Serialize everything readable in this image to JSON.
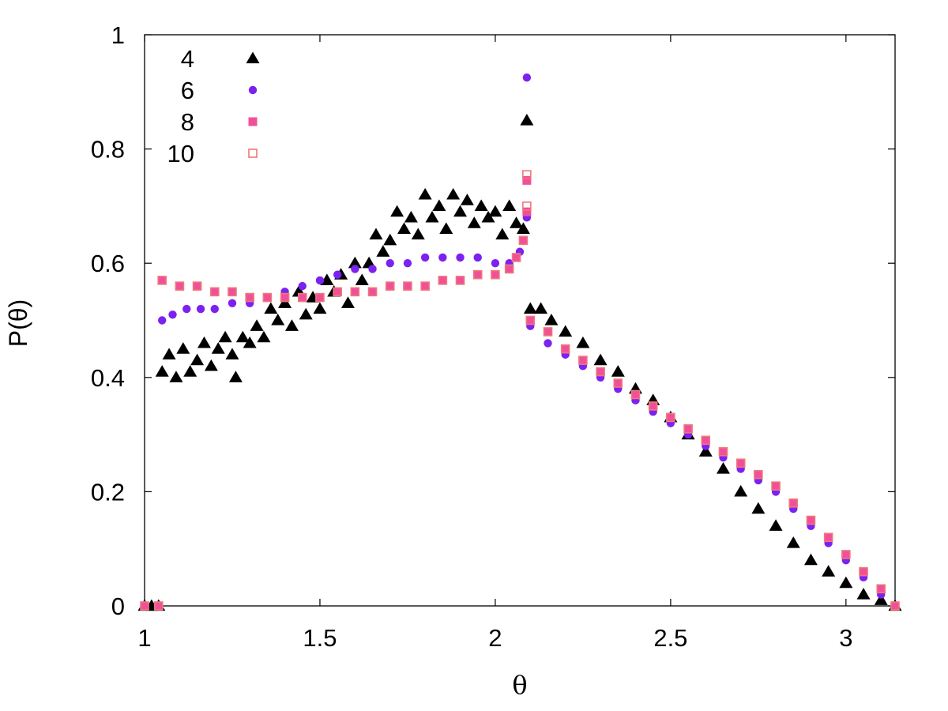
{
  "chart_data": {
    "type": "scatter",
    "title": "",
    "xlabel": "θ",
    "ylabel": "P(θ)",
    "xlim": [
      1,
      3.14
    ],
    "ylim": [
      0,
      1
    ],
    "x_ticks": [
      "1",
      "1.5",
      "2",
      "2.5",
      "3"
    ],
    "y_ticks": [
      "0",
      "0.2",
      "0.4",
      "0.6",
      "0.8",
      "1"
    ],
    "grid": false,
    "legend_position": "top-left",
    "series": [
      {
        "name": "4",
        "marker": "filled-triangle",
        "color": "#000000",
        "points": [
          [
            1.0,
            0.0
          ],
          [
            1.02,
            0.0
          ],
          [
            1.04,
            0.0
          ],
          [
            1.05,
            0.41
          ],
          [
            1.07,
            0.44
          ],
          [
            1.09,
            0.4
          ],
          [
            1.11,
            0.45
          ],
          [
            1.13,
            0.41
          ],
          [
            1.15,
            0.43
          ],
          [
            1.17,
            0.46
          ],
          [
            1.19,
            0.42
          ],
          [
            1.21,
            0.45
          ],
          [
            1.23,
            0.47
          ],
          [
            1.25,
            0.44
          ],
          [
            1.26,
            0.4
          ],
          [
            1.28,
            0.47
          ],
          [
            1.3,
            0.46
          ],
          [
            1.32,
            0.49
          ],
          [
            1.34,
            0.47
          ],
          [
            1.36,
            0.52
          ],
          [
            1.38,
            0.5
          ],
          [
            1.4,
            0.53
          ],
          [
            1.42,
            0.49
          ],
          [
            1.44,
            0.55
          ],
          [
            1.46,
            0.51
          ],
          [
            1.48,
            0.54
          ],
          [
            1.5,
            0.52
          ],
          [
            1.52,
            0.57
          ],
          [
            1.54,
            0.55
          ],
          [
            1.56,
            0.58
          ],
          [
            1.58,
            0.53
          ],
          [
            1.6,
            0.6
          ],
          [
            1.62,
            0.57
          ],
          [
            1.64,
            0.6
          ],
          [
            1.66,
            0.65
          ],
          [
            1.68,
            0.62
          ],
          [
            1.7,
            0.64
          ],
          [
            1.72,
            0.69
          ],
          [
            1.74,
            0.66
          ],
          [
            1.76,
            0.68
          ],
          [
            1.78,
            0.65
          ],
          [
            1.8,
            0.72
          ],
          [
            1.82,
            0.68
          ],
          [
            1.84,
            0.7
          ],
          [
            1.86,
            0.66
          ],
          [
            1.88,
            0.72
          ],
          [
            1.9,
            0.69
          ],
          [
            1.92,
            0.71
          ],
          [
            1.94,
            0.67
          ],
          [
            1.96,
            0.7
          ],
          [
            1.98,
            0.68
          ],
          [
            2.0,
            0.69
          ],
          [
            2.02,
            0.65
          ],
          [
            2.04,
            0.7
          ],
          [
            2.06,
            0.67
          ],
          [
            2.08,
            0.66
          ],
          [
            2.09,
            0.85
          ],
          [
            2.1,
            0.52
          ],
          [
            2.13,
            0.52
          ],
          [
            2.16,
            0.5
          ],
          [
            2.2,
            0.48
          ],
          [
            2.25,
            0.46
          ],
          [
            2.3,
            0.43
          ],
          [
            2.35,
            0.41
          ],
          [
            2.4,
            0.38
          ],
          [
            2.45,
            0.36
          ],
          [
            2.5,
            0.33
          ],
          [
            2.55,
            0.3
          ],
          [
            2.6,
            0.27
          ],
          [
            2.65,
            0.24
          ],
          [
            2.7,
            0.2
          ],
          [
            2.75,
            0.17
          ],
          [
            2.8,
            0.14
          ],
          [
            2.85,
            0.11
          ],
          [
            2.9,
            0.08
          ],
          [
            2.95,
            0.06
          ],
          [
            3.0,
            0.04
          ],
          [
            3.05,
            0.02
          ],
          [
            3.1,
            0.01
          ],
          [
            3.14,
            0.0
          ]
        ]
      },
      {
        "name": "6",
        "marker": "filled-circle",
        "color": "#7b22f0",
        "points": [
          [
            1.0,
            0.0
          ],
          [
            1.04,
            0.0
          ],
          [
            1.05,
            0.5
          ],
          [
            1.08,
            0.51
          ],
          [
            1.12,
            0.52
          ],
          [
            1.16,
            0.52
          ],
          [
            1.2,
            0.52
          ],
          [
            1.25,
            0.53
          ],
          [
            1.3,
            0.53
          ],
          [
            1.35,
            0.54
          ],
          [
            1.4,
            0.55
          ],
          [
            1.45,
            0.56
          ],
          [
            1.5,
            0.57
          ],
          [
            1.55,
            0.58
          ],
          [
            1.6,
            0.59
          ],
          [
            1.65,
            0.59
          ],
          [
            1.7,
            0.6
          ],
          [
            1.75,
            0.6
          ],
          [
            1.8,
            0.61
          ],
          [
            1.85,
            0.61
          ],
          [
            1.9,
            0.61
          ],
          [
            1.95,
            0.61
          ],
          [
            2.0,
            0.6
          ],
          [
            2.04,
            0.6
          ],
          [
            2.07,
            0.62
          ],
          [
            2.08,
            0.64
          ],
          [
            2.09,
            0.68
          ],
          [
            2.09,
            0.925
          ],
          [
            2.1,
            0.49
          ],
          [
            2.15,
            0.46
          ],
          [
            2.2,
            0.44
          ],
          [
            2.25,
            0.42
          ],
          [
            2.3,
            0.4
          ],
          [
            2.35,
            0.38
          ],
          [
            2.4,
            0.36
          ],
          [
            2.45,
            0.34
          ],
          [
            2.5,
            0.32
          ],
          [
            2.55,
            0.3
          ],
          [
            2.6,
            0.28
          ],
          [
            2.65,
            0.26
          ],
          [
            2.7,
            0.24
          ],
          [
            2.75,
            0.22
          ],
          [
            2.8,
            0.2
          ],
          [
            2.85,
            0.17
          ],
          [
            2.9,
            0.14
          ],
          [
            2.95,
            0.11
          ],
          [
            3.0,
            0.08
          ],
          [
            3.05,
            0.05
          ],
          [
            3.1,
            0.02
          ],
          [
            3.14,
            0.0
          ]
        ]
      },
      {
        "name": "8",
        "marker": "filled-square",
        "color": "#f0509a",
        "points": [
          [
            1.0,
            0.0
          ],
          [
            1.04,
            0.0
          ],
          [
            1.05,
            0.57
          ],
          [
            1.1,
            0.56
          ],
          [
            1.15,
            0.56
          ],
          [
            1.2,
            0.55
          ],
          [
            1.25,
            0.55
          ],
          [
            1.3,
            0.54
          ],
          [
            1.35,
            0.54
          ],
          [
            1.4,
            0.54
          ],
          [
            1.45,
            0.54
          ],
          [
            1.5,
            0.54
          ],
          [
            1.55,
            0.55
          ],
          [
            1.6,
            0.55
          ],
          [
            1.65,
            0.55
          ],
          [
            1.7,
            0.56
          ],
          [
            1.75,
            0.56
          ],
          [
            1.8,
            0.56
          ],
          [
            1.85,
            0.57
          ],
          [
            1.9,
            0.57
          ],
          [
            1.95,
            0.58
          ],
          [
            2.0,
            0.58
          ],
          [
            2.04,
            0.59
          ],
          [
            2.06,
            0.61
          ],
          [
            2.08,
            0.64
          ],
          [
            2.09,
            0.69
          ],
          [
            2.09,
            0.745
          ],
          [
            2.1,
            0.5
          ],
          [
            2.15,
            0.48
          ],
          [
            2.2,
            0.45
          ],
          [
            2.25,
            0.43
          ],
          [
            2.3,
            0.41
          ],
          [
            2.35,
            0.39
          ],
          [
            2.4,
            0.37
          ],
          [
            2.45,
            0.35
          ],
          [
            2.5,
            0.33
          ],
          [
            2.55,
            0.31
          ],
          [
            2.6,
            0.29
          ],
          [
            2.65,
            0.27
          ],
          [
            2.7,
            0.25
          ],
          [
            2.75,
            0.23
          ],
          [
            2.8,
            0.21
          ],
          [
            2.85,
            0.18
          ],
          [
            2.9,
            0.15
          ],
          [
            2.95,
            0.12
          ],
          [
            3.0,
            0.09
          ],
          [
            3.05,
            0.06
          ],
          [
            3.1,
            0.03
          ],
          [
            3.14,
            0.0
          ]
        ]
      },
      {
        "name": "10",
        "marker": "open-square",
        "color": "#f07878",
        "points": [
          [
            1.0,
            0.0
          ],
          [
            1.04,
            0.0
          ],
          [
            1.05,
            0.57
          ],
          [
            1.1,
            0.56
          ],
          [
            1.15,
            0.56
          ],
          [
            1.2,
            0.55
          ],
          [
            1.25,
            0.55
          ],
          [
            1.3,
            0.54
          ],
          [
            1.35,
            0.54
          ],
          [
            1.4,
            0.54
          ],
          [
            1.45,
            0.54
          ],
          [
            1.5,
            0.54
          ],
          [
            1.55,
            0.55
          ],
          [
            1.6,
            0.55
          ],
          [
            1.65,
            0.55
          ],
          [
            1.7,
            0.56
          ],
          [
            1.75,
            0.56
          ],
          [
            1.8,
            0.56
          ],
          [
            1.85,
            0.57
          ],
          [
            1.9,
            0.57
          ],
          [
            1.95,
            0.58
          ],
          [
            2.0,
            0.58
          ],
          [
            2.04,
            0.59
          ],
          [
            2.06,
            0.61
          ],
          [
            2.08,
            0.64
          ],
          [
            2.09,
            0.7
          ],
          [
            2.09,
            0.755
          ],
          [
            2.1,
            0.5
          ],
          [
            2.15,
            0.48
          ],
          [
            2.2,
            0.45
          ],
          [
            2.25,
            0.43
          ],
          [
            2.3,
            0.41
          ],
          [
            2.35,
            0.39
          ],
          [
            2.4,
            0.37
          ],
          [
            2.45,
            0.35
          ],
          [
            2.5,
            0.33
          ],
          [
            2.55,
            0.31
          ],
          [
            2.6,
            0.29
          ],
          [
            2.65,
            0.27
          ],
          [
            2.7,
            0.25
          ],
          [
            2.75,
            0.23
          ],
          [
            2.8,
            0.21
          ],
          [
            2.85,
            0.18
          ],
          [
            2.9,
            0.15
          ],
          [
            2.95,
            0.12
          ],
          [
            3.0,
            0.09
          ],
          [
            3.05,
            0.06
          ],
          [
            3.1,
            0.03
          ],
          [
            3.14,
            0.0
          ]
        ]
      }
    ]
  }
}
